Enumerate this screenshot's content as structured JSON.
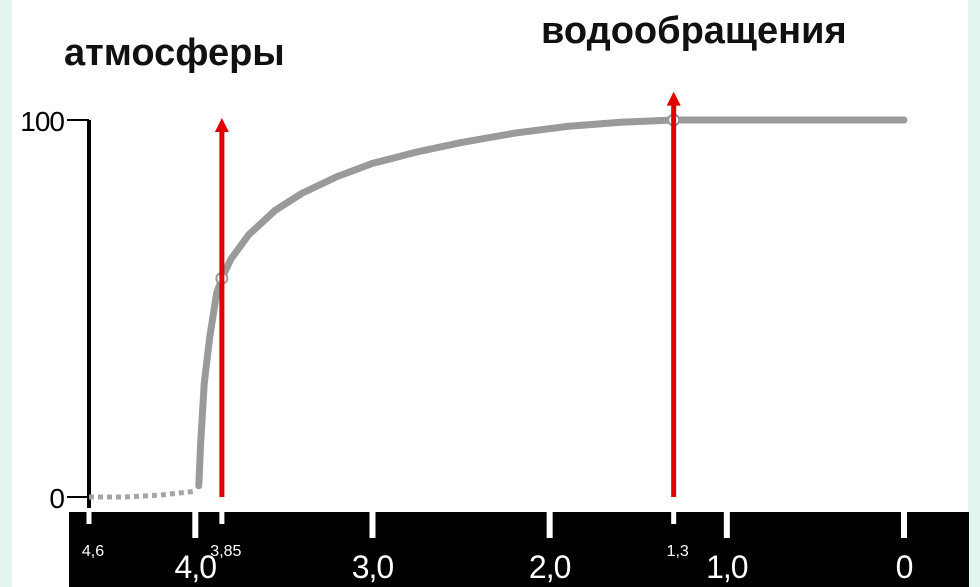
{
  "labels": {
    "left_title": "атмосферы",
    "right_title": "водообращения"
  },
  "chart_data": {
    "type": "line",
    "title": "",
    "xlabel": "",
    "ylabel": "",
    "x_reversed": true,
    "xlim": [
      4.6,
      0
    ],
    "ylim": [
      0,
      100
    ],
    "y_ticks": [
      {
        "value": 0,
        "label": "0"
      },
      {
        "value": 100,
        "label": "100"
      }
    ],
    "x_ticks": [
      {
        "value": 4.6,
        "label": "4,6",
        "size": "small"
      },
      {
        "value": 4.0,
        "label": "4,0",
        "size": "large"
      },
      {
        "value": 3.85,
        "label": "3,85",
        "size": "small"
      },
      {
        "value": 3.0,
        "label": "3,0",
        "size": "large"
      },
      {
        "value": 2.0,
        "label": "2,0",
        "size": "large"
      },
      {
        "value": 1.3,
        "label": "1,3",
        "size": "small"
      },
      {
        "value": 1.0,
        "label": "1,0",
        "size": "large"
      },
      {
        "value": 0,
        "label": "0",
        "size": "large"
      }
    ],
    "series": [
      {
        "style": "dotted",
        "color": "#a5a5a5",
        "points": [
          [
            4.6,
            0
          ],
          [
            4.4,
            0
          ],
          [
            4.2,
            0.5
          ],
          [
            4.0,
            1.5
          ]
        ]
      },
      {
        "style": "solid",
        "color": "#9a9a9a",
        "points": [
          [
            3.98,
            3
          ],
          [
            3.97,
            14
          ],
          [
            3.95,
            30
          ],
          [
            3.92,
            42
          ],
          [
            3.88,
            54
          ],
          [
            3.85,
            58
          ],
          [
            3.8,
            63
          ],
          [
            3.7,
            69.5
          ],
          [
            3.55,
            76
          ],
          [
            3.4,
            80.5
          ],
          [
            3.2,
            85
          ],
          [
            3.0,
            88.5
          ],
          [
            2.75,
            91.5
          ],
          [
            2.5,
            94
          ],
          [
            2.2,
            96.5
          ],
          [
            1.9,
            98.3
          ],
          [
            1.6,
            99.4
          ],
          [
            1.3,
            100
          ],
          [
            1.0,
            100
          ],
          [
            0.5,
            100
          ],
          [
            0,
            100
          ]
        ]
      }
    ],
    "markers": [
      {
        "x": 3.85,
        "y": 58
      },
      {
        "x": 1.3,
        "y": 100
      }
    ],
    "arrows": [
      {
        "x": 3.85,
        "from_y": 0,
        "to_y": 100,
        "color": "#e00000"
      },
      {
        "x": 1.3,
        "from_y": 0,
        "to_y": 107,
        "color": "#e00000"
      }
    ],
    "colors": {
      "axis": "#000000",
      "axis_band": "#000000",
      "tick_label_on_band": "#ffffff",
      "background": "#e3f5f1"
    }
  }
}
